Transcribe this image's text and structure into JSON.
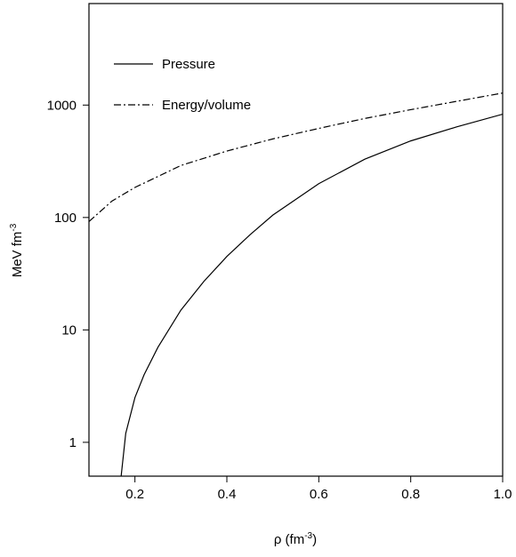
{
  "chart_data": {
    "type": "line",
    "title": "",
    "xlabel": {
      "base": "ρ (fm",
      "sup": "-3",
      "close": ")"
    },
    "ylabel": {
      "base": "MeV fm",
      "sup": "-3"
    },
    "x_ticks": [
      0.2,
      0.4,
      0.6,
      0.8,
      1.0
    ],
    "x_tick_labels": [
      "0.2",
      "0.4",
      "0.6",
      "0.8",
      "1.0"
    ],
    "y_ticks": [
      1,
      10,
      100,
      1000
    ],
    "y_tick_labels": [
      "1",
      "10",
      "100",
      "1000"
    ],
    "xlim": [
      0.1,
      1.0
    ],
    "ylim": [
      0.5,
      8000
    ],
    "y_scale": "log",
    "grid": false,
    "legend_position": "top-left",
    "series": [
      {
        "name": "Pressure",
        "line_style": "solid",
        "color": "#000000",
        "x": [
          0.17,
          0.18,
          0.2,
          0.22,
          0.25,
          0.3,
          0.35,
          0.4,
          0.45,
          0.5,
          0.6,
          0.7,
          0.8,
          0.9,
          1.0
        ],
        "y": [
          0.5,
          1.2,
          2.5,
          4.0,
          7.0,
          15,
          27,
          45,
          70,
          105,
          200,
          330,
          480,
          640,
          830
        ]
      },
      {
        "name": "Energy/volume",
        "line_style": "dashdot",
        "color": "#000000",
        "x": [
          0.1,
          0.15,
          0.2,
          0.3,
          0.4,
          0.5,
          0.6,
          0.7,
          0.8,
          0.9,
          1.0
        ],
        "y": [
          92,
          140,
          185,
          290,
          390,
          500,
          620,
          760,
          910,
          1080,
          1280
        ]
      }
    ]
  }
}
